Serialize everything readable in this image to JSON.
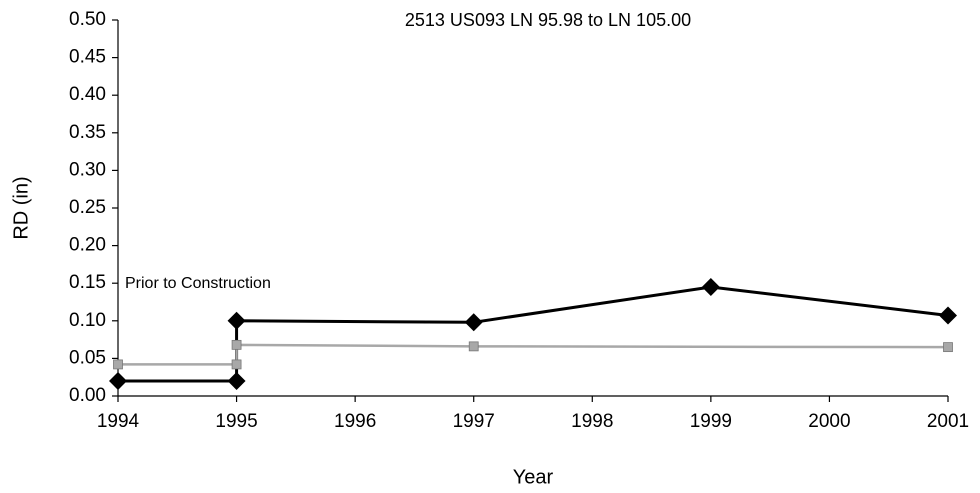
{
  "chart_data": {
    "type": "line",
    "title": "2513 US093 LN 95.98 to LN 105.00",
    "x_label": "Year",
    "y_label": "RD (in)",
    "annotation": "Prior to Construction",
    "series": [
      {
        "color": "#000000",
        "marker": "diamond",
        "x": [
          1994,
          1995,
          1995,
          1997,
          1999,
          2001
        ],
        "values": [
          0.02,
          0.02,
          0.1,
          0.098,
          0.145,
          0.107
        ]
      },
      {
        "color": "#a8a8a8",
        "marker": "square",
        "x": [
          1994,
          1995,
          1995,
          1997,
          2001
        ],
        "values": [
          0.042,
          0.042,
          0.068,
          0.066,
          0.065
        ]
      }
    ],
    "xlim": [
      1994,
      2001
    ],
    "xticks": [
      1994,
      1995,
      1996,
      1997,
      1998,
      1999,
      2000,
      2001
    ],
    "ylim": [
      0,
      0.5
    ],
    "yticks": [
      {
        "value": 0,
        "label": "0.00"
      },
      {
        "value": 0.05,
        "label": "0.05"
      },
      {
        "value": 0.1,
        "label": "0.10"
      },
      {
        "value": 0.15,
        "label": "0.15"
      },
      {
        "value": 0.2,
        "label": "0.20"
      },
      {
        "value": 0.25,
        "label": "0.25"
      },
      {
        "value": 0.3,
        "label": "0.30"
      },
      {
        "value": 0.35,
        "label": "0.35"
      },
      {
        "value": 0.4,
        "label": "0.40"
      },
      {
        "value": 0.45,
        "label": "0.45"
      },
      {
        "value": 0.5,
        "label": "0.50"
      }
    ],
    "grid": false
  }
}
